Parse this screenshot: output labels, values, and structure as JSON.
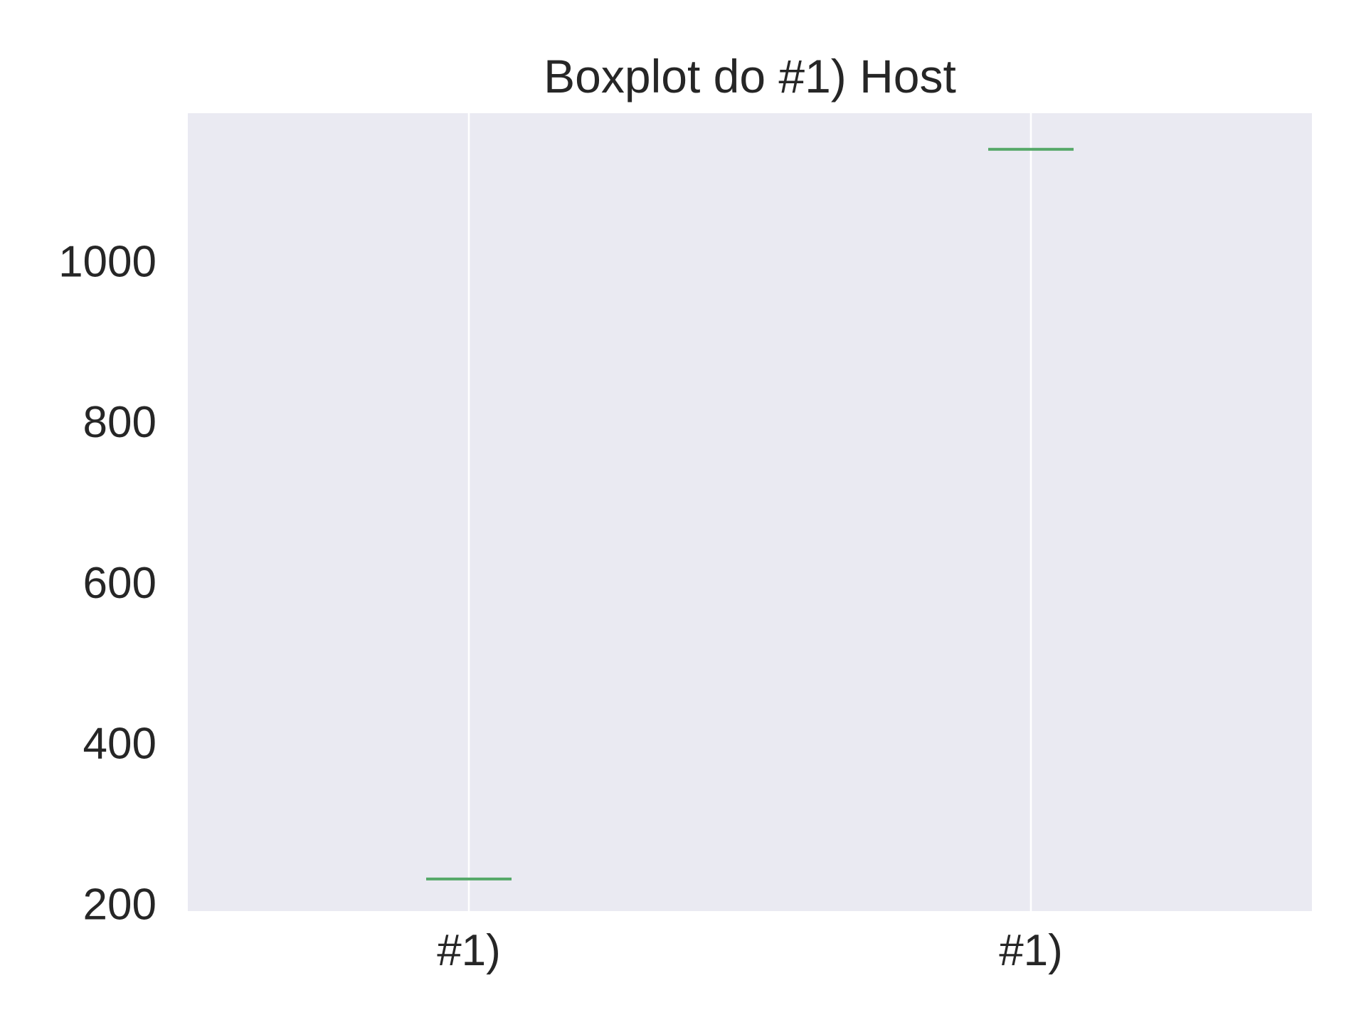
{
  "chart_data": {
    "type": "box",
    "title": "Boxplot do #1) Host",
    "xlabel": "",
    "ylabel": "",
    "categories": [
      "#1)",
      "#1)"
    ],
    "values": [
      232,
      1140
    ],
    "ylim": [
      192,
      1185
    ],
    "yticks": [
      200,
      400,
      600,
      800,
      1000
    ],
    "grid": true,
    "legend": "none",
    "colors": {
      "background": "#EAEAF2",
      "grid": "#FFFFFF",
      "median": "#55A868",
      "text": "#262626"
    }
  }
}
